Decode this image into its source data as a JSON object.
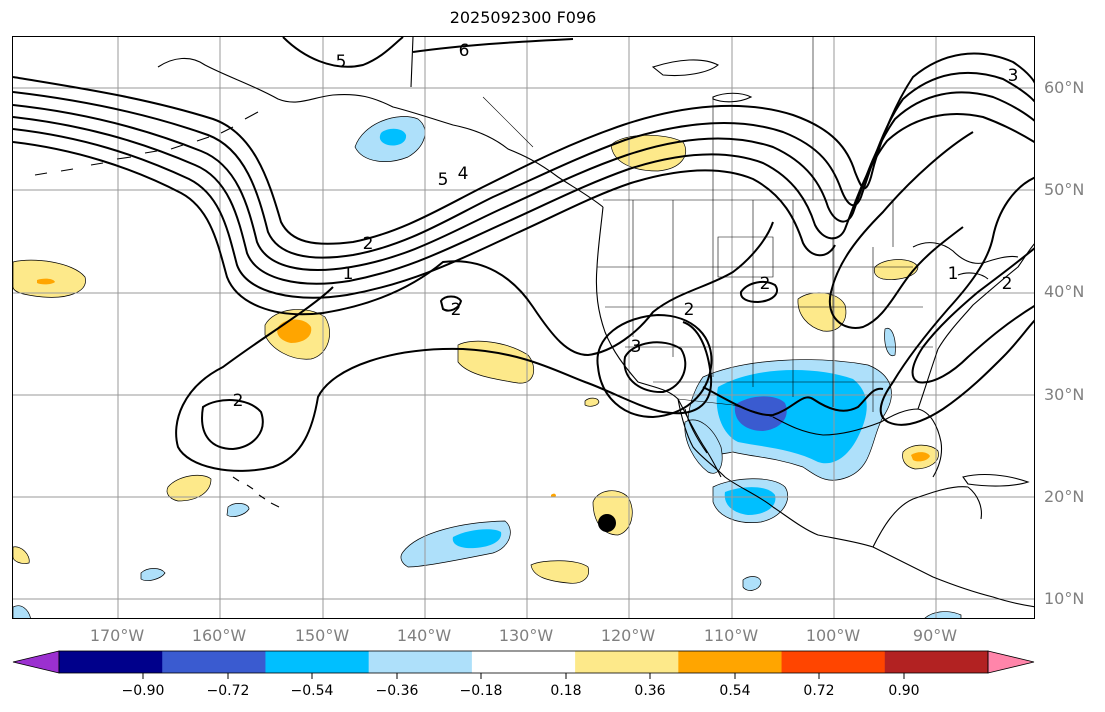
{
  "title": "2025092300 F096",
  "lat_labels": [
    "60°N",
    "50°N",
    "40°N",
    "30°N",
    "20°N",
    "10°N"
  ],
  "lon_labels": [
    "170°W",
    "160°W",
    "150°W",
    "140°W",
    "130°W",
    "120°W",
    "110°W",
    "100°W",
    "90°W"
  ],
  "contour_labels": [
    "5",
    "6",
    "3",
    "5",
    "4",
    "2",
    "1",
    "2",
    "2",
    "3",
    "2",
    "1",
    "2",
    "2"
  ],
  "colorbar": {
    "ticks": [
      "−0.90",
      "−0.72",
      "−0.54",
      "−0.36",
      "−0.18",
      "0.18",
      "0.36",
      "0.54",
      "0.72",
      "0.90"
    ],
    "colors": [
      "#9b30d0",
      "#00008b",
      "#3a5bd0",
      "#00bfff",
      "#aee0fa",
      "#ffffff",
      "#fde98a",
      "#ffa500",
      "#ff4500",
      "#b22222",
      "#ff85aa"
    ]
  },
  "marker": "black-dot"
}
